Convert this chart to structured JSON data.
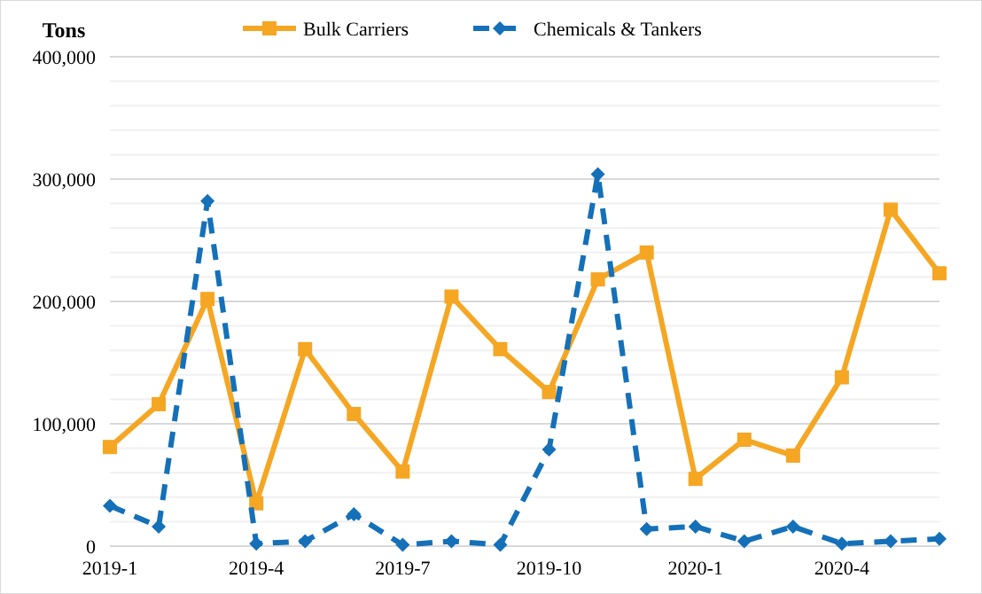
{
  "chart_data": {
    "type": "line",
    "ylabel": "Tons",
    "categories": [
      "2019-1",
      null,
      null,
      "2019-4",
      null,
      null,
      "2019-7",
      null,
      null,
      "2019-10",
      null,
      null,
      "2020-1",
      null,
      null,
      "2020-4",
      null,
      null
    ],
    "series": [
      {
        "name": "Bulk Carriers",
        "color": "#f5a623",
        "marker": "square",
        "line_style": "solid",
        "values": [
          81000,
          116000,
          202000,
          35000,
          161000,
          108000,
          61000,
          204000,
          161000,
          126000,
          218000,
          240000,
          55000,
          87000,
          74000,
          138000,
          275000,
          223000
        ]
      },
      {
        "name": "Chemicals & Tankers",
        "color": "#1470b8",
        "marker": "diamond",
        "line_style": "dashed",
        "values": [
          33000,
          16000,
          282000,
          2000,
          4000,
          26000,
          1000,
          4000,
          1000,
          79000,
          304000,
          14000,
          16000,
          4000,
          16000,
          2000,
          4000,
          6000
        ]
      }
    ],
    "ylim": [
      0,
      400000
    ],
    "yticks": [
      {
        "value": 0,
        "label": "0"
      },
      {
        "value": 20000,
        "label": null
      },
      {
        "value": 40000,
        "label": null
      },
      {
        "value": 60000,
        "label": null
      },
      {
        "value": 80000,
        "label": null
      },
      {
        "value": 100000,
        "label": "100,000"
      },
      {
        "value": 120000,
        "label": null
      },
      {
        "value": 140000,
        "label": null
      },
      {
        "value": 160000,
        "label": null
      },
      {
        "value": 180000,
        "label": null
      },
      {
        "value": 200000,
        "label": "200,000"
      },
      {
        "value": 220000,
        "label": null
      },
      {
        "value": 240000,
        "label": null
      },
      {
        "value": 260000,
        "label": null
      },
      {
        "value": 280000,
        "label": null
      },
      {
        "value": 300000,
        "label": "300,000"
      },
      {
        "value": 320000,
        "label": null
      },
      {
        "value": 340000,
        "label": null
      },
      {
        "value": 360000,
        "label": null
      },
      {
        "value": 380000,
        "label": null
      },
      {
        "value": 400000,
        "label": "400,000"
      }
    ],
    "grid": "y",
    "legend": "top"
  }
}
